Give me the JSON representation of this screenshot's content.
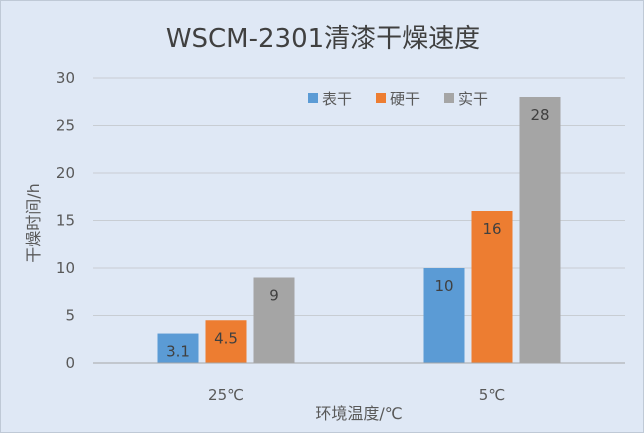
{
  "chart_data": {
    "type": "bar",
    "title": "WSCM-2301清漆干燥速度",
    "xlabel": "环境温度/℃",
    "ylabel": "干燥时间/h",
    "categories": [
      "25℃",
      "5℃"
    ],
    "series": [
      {
        "name": "表干",
        "values": [
          3.1,
          10
        ],
        "labels": [
          "3.1",
          "10"
        ],
        "color": "#5b9bd5"
      },
      {
        "name": "硬干",
        "values": [
          4.5,
          16
        ],
        "labels": [
          "4.5",
          "16"
        ],
        "color": "#ed7d31"
      },
      {
        "name": "实干",
        "values": [
          9,
          28
        ],
        "labels": [
          "9",
          "28"
        ],
        "color": "#a5a5a5"
      }
    ],
    "ylim": [
      0,
      30
    ],
    "yticks": [
      0,
      5,
      10,
      15,
      20,
      25,
      30
    ],
    "grid": true,
    "legend": "top-right"
  }
}
